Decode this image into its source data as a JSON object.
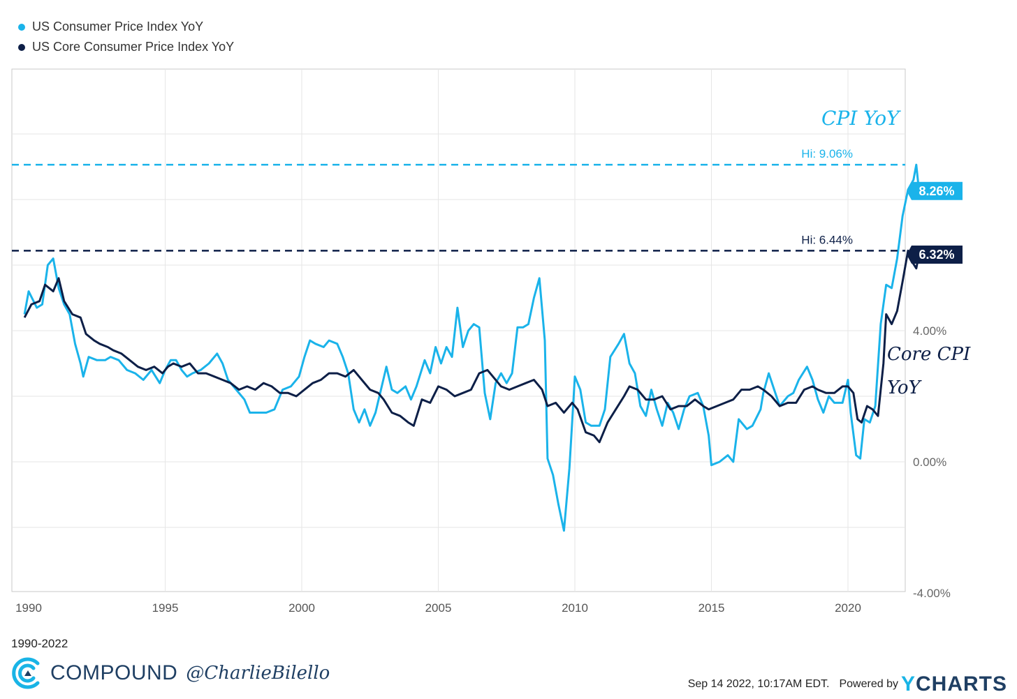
{
  "legend": [
    {
      "label": "US Consumer Price Index YoY",
      "color": "#1ab3ea"
    },
    {
      "label": "US Core Consumer Price Index YoY",
      "color": "#0d1f47"
    }
  ],
  "chart_data": {
    "type": "line",
    "title": "",
    "xlabel": "",
    "ylabel": "",
    "xlim": [
      1989.85,
      2022.6
    ],
    "ylim": [
      -4,
      12
    ],
    "y_ticks": [
      -4,
      0,
      4
    ],
    "y_tick_labels": [
      "-4.00%",
      "0.00%",
      "4.00%"
    ],
    "x_ticks": [
      1990,
      1995,
      2000,
      2005,
      2010,
      2015,
      2020
    ],
    "x_tick_labels": [
      "1990",
      "1995",
      "2000",
      "2005",
      "2010",
      "2015",
      "2020"
    ],
    "grid": true,
    "series": [
      {
        "name": "US Consumer Price Index YoY",
        "color": "#1ab3ea",
        "points": [
          [
            1989.85,
            4.5
          ],
          [
            1990.0,
            5.2
          ],
          [
            1990.3,
            4.7
          ],
          [
            1990.5,
            4.8
          ],
          [
            1990.7,
            6.0
          ],
          [
            1990.9,
            6.2
          ],
          [
            1991.1,
            5.3
          ],
          [
            1991.3,
            4.8
          ],
          [
            1991.5,
            4.5
          ],
          [
            1991.7,
            3.6
          ],
          [
            1991.9,
            3.0
          ],
          [
            1992.0,
            2.6
          ],
          [
            1992.2,
            3.2
          ],
          [
            1992.5,
            3.1
          ],
          [
            1992.8,
            3.1
          ],
          [
            1993.0,
            3.2
          ],
          [
            1993.3,
            3.1
          ],
          [
            1993.6,
            2.8
          ],
          [
            1993.9,
            2.7
          ],
          [
            1994.2,
            2.5
          ],
          [
            1994.5,
            2.8
          ],
          [
            1994.8,
            2.4
          ],
          [
            1995.0,
            2.8
          ],
          [
            1995.2,
            3.1
          ],
          [
            1995.4,
            3.1
          ],
          [
            1995.6,
            2.8
          ],
          [
            1995.8,
            2.6
          ],
          [
            1996.0,
            2.7
          ],
          [
            1996.3,
            2.8
          ],
          [
            1996.6,
            3.0
          ],
          [
            1996.9,
            3.3
          ],
          [
            1997.1,
            3.0
          ],
          [
            1997.3,
            2.5
          ],
          [
            1997.6,
            2.2
          ],
          [
            1997.9,
            1.9
          ],
          [
            1998.1,
            1.5
          ],
          [
            1998.4,
            1.5
          ],
          [
            1998.7,
            1.5
          ],
          [
            1999.0,
            1.6
          ],
          [
            1999.3,
            2.2
          ],
          [
            1999.6,
            2.3
          ],
          [
            1999.9,
            2.6
          ],
          [
            2000.1,
            3.2
          ],
          [
            2000.3,
            3.7
          ],
          [
            2000.5,
            3.6
          ],
          [
            2000.8,
            3.5
          ],
          [
            2001.0,
            3.7
          ],
          [
            2001.3,
            3.6
          ],
          [
            2001.5,
            3.2
          ],
          [
            2001.7,
            2.7
          ],
          [
            2001.9,
            1.6
          ],
          [
            2002.1,
            1.2
          ],
          [
            2002.3,
            1.6
          ],
          [
            2002.5,
            1.1
          ],
          [
            2002.7,
            1.5
          ],
          [
            2002.9,
            2.2
          ],
          [
            2003.1,
            2.9
          ],
          [
            2003.3,
            2.2
          ],
          [
            2003.5,
            2.1
          ],
          [
            2003.8,
            2.3
          ],
          [
            2004.0,
            1.9
          ],
          [
            2004.2,
            2.3
          ],
          [
            2004.5,
            3.1
          ],
          [
            2004.7,
            2.7
          ],
          [
            2004.9,
            3.5
          ],
          [
            2005.1,
            3.0
          ],
          [
            2005.3,
            3.5
          ],
          [
            2005.5,
            3.2
          ],
          [
            2005.7,
            4.7
          ],
          [
            2005.9,
            3.5
          ],
          [
            2006.1,
            4.0
          ],
          [
            2006.3,
            4.2
          ],
          [
            2006.5,
            4.1
          ],
          [
            2006.7,
            2.1
          ],
          [
            2006.9,
            1.3
          ],
          [
            2007.1,
            2.4
          ],
          [
            2007.3,
            2.7
          ],
          [
            2007.5,
            2.4
          ],
          [
            2007.7,
            2.7
          ],
          [
            2007.9,
            4.1
          ],
          [
            2008.1,
            4.1
          ],
          [
            2008.3,
            4.2
          ],
          [
            2008.5,
            5.0
          ],
          [
            2008.7,
            5.6
          ],
          [
            2008.9,
            3.7
          ],
          [
            2009.0,
            0.1
          ],
          [
            2009.2,
            -0.4
          ],
          [
            2009.4,
            -1.3
          ],
          [
            2009.6,
            -2.1
          ],
          [
            2009.8,
            -0.2
          ],
          [
            2010.0,
            2.6
          ],
          [
            2010.2,
            2.2
          ],
          [
            2010.4,
            1.2
          ],
          [
            2010.6,
            1.1
          ],
          [
            2010.9,
            1.1
          ],
          [
            2011.1,
            1.6
          ],
          [
            2011.3,
            3.2
          ],
          [
            2011.6,
            3.6
          ],
          [
            2011.8,
            3.9
          ],
          [
            2012.0,
            3.0
          ],
          [
            2012.2,
            2.7
          ],
          [
            2012.4,
            1.7
          ],
          [
            2012.6,
            1.4
          ],
          [
            2012.8,
            2.2
          ],
          [
            2013.0,
            1.6
          ],
          [
            2013.2,
            1.1
          ],
          [
            2013.4,
            1.8
          ],
          [
            2013.6,
            1.5
          ],
          [
            2013.8,
            1.0
          ],
          [
            2014.0,
            1.6
          ],
          [
            2014.2,
            2.0
          ],
          [
            2014.5,
            2.1
          ],
          [
            2014.7,
            1.7
          ],
          [
            2014.9,
            0.8
          ],
          [
            2015.0,
            -0.1
          ],
          [
            2015.3,
            0.0
          ],
          [
            2015.6,
            0.2
          ],
          [
            2015.8,
            0.0
          ],
          [
            2016.0,
            1.3
          ],
          [
            2016.3,
            1.0
          ],
          [
            2016.5,
            1.1
          ],
          [
            2016.8,
            1.6
          ],
          [
            2016.9,
            2.1
          ],
          [
            2017.1,
            2.7
          ],
          [
            2017.3,
            2.2
          ],
          [
            2017.5,
            1.7
          ],
          [
            2017.8,
            2.0
          ],
          [
            2018.0,
            2.1
          ],
          [
            2018.2,
            2.5
          ],
          [
            2018.5,
            2.9
          ],
          [
            2018.7,
            2.5
          ],
          [
            2018.9,
            1.9
          ],
          [
            2019.1,
            1.5
          ],
          [
            2019.3,
            2.0
          ],
          [
            2019.5,
            1.8
          ],
          [
            2019.8,
            1.8
          ],
          [
            2020.0,
            2.5
          ],
          [
            2020.1,
            1.5
          ],
          [
            2020.3,
            0.2
          ],
          [
            2020.45,
            0.1
          ],
          [
            2020.6,
            1.3
          ],
          [
            2020.8,
            1.2
          ],
          [
            2021.0,
            1.7
          ],
          [
            2021.2,
            4.2
          ],
          [
            2021.4,
            5.4
          ],
          [
            2021.6,
            5.3
          ],
          [
            2021.8,
            6.2
          ],
          [
            2022.0,
            7.5
          ],
          [
            2022.2,
            8.3
          ],
          [
            2022.4,
            8.6
          ],
          [
            2022.5,
            9.06
          ],
          [
            2022.6,
            8.26
          ]
        ]
      },
      {
        "name": "US Core Consumer Price Index YoY",
        "color": "#0d1f47",
        "points": [
          [
            1989.85,
            4.4
          ],
          [
            1990.1,
            4.8
          ],
          [
            1990.4,
            4.9
          ],
          [
            1990.6,
            5.4
          ],
          [
            1990.9,
            5.2
          ],
          [
            1991.1,
            5.6
          ],
          [
            1991.3,
            4.9
          ],
          [
            1991.6,
            4.5
          ],
          [
            1991.9,
            4.4
          ],
          [
            1992.1,
            3.9
          ],
          [
            1992.4,
            3.7
          ],
          [
            1992.6,
            3.6
          ],
          [
            1992.9,
            3.5
          ],
          [
            1993.1,
            3.4
          ],
          [
            1993.4,
            3.3
          ],
          [
            1993.7,
            3.1
          ],
          [
            1994.0,
            2.9
          ],
          [
            1994.3,
            2.8
          ],
          [
            1994.6,
            2.9
          ],
          [
            1994.9,
            2.7
          ],
          [
            1995.1,
            2.9
          ],
          [
            1995.3,
            3.0
          ],
          [
            1995.6,
            2.9
          ],
          [
            1995.9,
            3.0
          ],
          [
            1996.2,
            2.7
          ],
          [
            1996.5,
            2.7
          ],
          [
            1996.8,
            2.6
          ],
          [
            1997.1,
            2.5
          ],
          [
            1997.4,
            2.4
          ],
          [
            1997.7,
            2.2
          ],
          [
            1998.0,
            2.3
          ],
          [
            1998.3,
            2.2
          ],
          [
            1998.6,
            2.4
          ],
          [
            1998.9,
            2.3
          ],
          [
            1999.2,
            2.1
          ],
          [
            1999.5,
            2.1
          ],
          [
            1999.8,
            2.0
          ],
          [
            2000.1,
            2.2
          ],
          [
            2000.4,
            2.4
          ],
          [
            2000.7,
            2.5
          ],
          [
            2001.0,
            2.7
          ],
          [
            2001.3,
            2.7
          ],
          [
            2001.6,
            2.6
          ],
          [
            2001.9,
            2.8
          ],
          [
            2002.2,
            2.5
          ],
          [
            2002.5,
            2.2
          ],
          [
            2002.8,
            2.1
          ],
          [
            2003.0,
            1.9
          ],
          [
            2003.3,
            1.5
          ],
          [
            2003.6,
            1.4
          ],
          [
            2003.9,
            1.2
          ],
          [
            2004.1,
            1.1
          ],
          [
            2004.4,
            1.9
          ],
          [
            2004.7,
            1.8
          ],
          [
            2005.0,
            2.3
          ],
          [
            2005.3,
            2.2
          ],
          [
            2005.6,
            2.0
          ],
          [
            2005.9,
            2.1
          ],
          [
            2006.2,
            2.2
          ],
          [
            2006.5,
            2.7
          ],
          [
            2006.8,
            2.8
          ],
          [
            2007.0,
            2.6
          ],
          [
            2007.3,
            2.3
          ],
          [
            2007.6,
            2.2
          ],
          [
            2007.9,
            2.3
          ],
          [
            2008.2,
            2.4
          ],
          [
            2008.5,
            2.5
          ],
          [
            2008.8,
            2.2
          ],
          [
            2009.0,
            1.7
          ],
          [
            2009.3,
            1.8
          ],
          [
            2009.6,
            1.5
          ],
          [
            2009.9,
            1.8
          ],
          [
            2010.1,
            1.6
          ],
          [
            2010.4,
            0.9
          ],
          [
            2010.7,
            0.8
          ],
          [
            2010.9,
            0.6
          ],
          [
            2011.2,
            1.2
          ],
          [
            2011.5,
            1.6
          ],
          [
            2011.8,
            2.0
          ],
          [
            2012.0,
            2.3
          ],
          [
            2012.3,
            2.2
          ],
          [
            2012.6,
            1.9
          ],
          [
            2012.9,
            1.9
          ],
          [
            2013.2,
            2.0
          ],
          [
            2013.5,
            1.6
          ],
          [
            2013.8,
            1.7
          ],
          [
            2014.1,
            1.7
          ],
          [
            2014.4,
            1.9
          ],
          [
            2014.7,
            1.7
          ],
          [
            2014.9,
            1.6
          ],
          [
            2015.2,
            1.7
          ],
          [
            2015.5,
            1.8
          ],
          [
            2015.8,
            1.9
          ],
          [
            2016.1,
            2.2
          ],
          [
            2016.4,
            2.2
          ],
          [
            2016.7,
            2.3
          ],
          [
            2016.9,
            2.2
          ],
          [
            2017.2,
            2.0
          ],
          [
            2017.5,
            1.7
          ],
          [
            2017.8,
            1.8
          ],
          [
            2018.1,
            1.8
          ],
          [
            2018.4,
            2.2
          ],
          [
            2018.7,
            2.3
          ],
          [
            2018.9,
            2.2
          ],
          [
            2019.2,
            2.1
          ],
          [
            2019.5,
            2.1
          ],
          [
            2019.8,
            2.3
          ],
          [
            2020.0,
            2.3
          ],
          [
            2020.2,
            2.1
          ],
          [
            2020.35,
            1.3
          ],
          [
            2020.5,
            1.2
          ],
          [
            2020.7,
            1.7
          ],
          [
            2020.9,
            1.6
          ],
          [
            2021.1,
            1.4
          ],
          [
            2021.3,
            3.0
          ],
          [
            2021.4,
            4.5
          ],
          [
            2021.6,
            4.2
          ],
          [
            2021.8,
            4.6
          ],
          [
            2022.0,
            5.5
          ],
          [
            2022.2,
            6.44
          ],
          [
            2022.35,
            6.1
          ],
          [
            2022.5,
            5.9
          ],
          [
            2022.6,
            6.32
          ]
        ]
      }
    ],
    "reference_lines": [
      {
        "label": "Hi: 9.06%",
        "value": 9.06,
        "color": "#1ab3ea"
      },
      {
        "label": "Hi: 6.44%",
        "value": 6.44,
        "color": "#0d1f47"
      }
    ],
    "value_badges": [
      {
        "label": "8.26%",
        "value": 8.26,
        "color": "#1ab3ea"
      },
      {
        "label": "6.32%",
        "value": 6.32,
        "color": "#0d1f47"
      }
    ],
    "annotations": [
      {
        "text": "CPI YoY",
        "color": "#1ab3ea"
      },
      {
        "text": "Core CPI",
        "color": "#0d1f47"
      },
      {
        "text": "YoY",
        "color": "#0d1f47"
      }
    ]
  },
  "footer": {
    "date_range": "1990-2022",
    "brand_name": "COMPOUND",
    "brand_handle": "@CharlieBilello",
    "timestamp": "Sep 14 2022, 10:17AM EDT.",
    "powered_by": "Powered by",
    "ycharts_y": "Y",
    "ycharts_rest": "CHARTS"
  }
}
